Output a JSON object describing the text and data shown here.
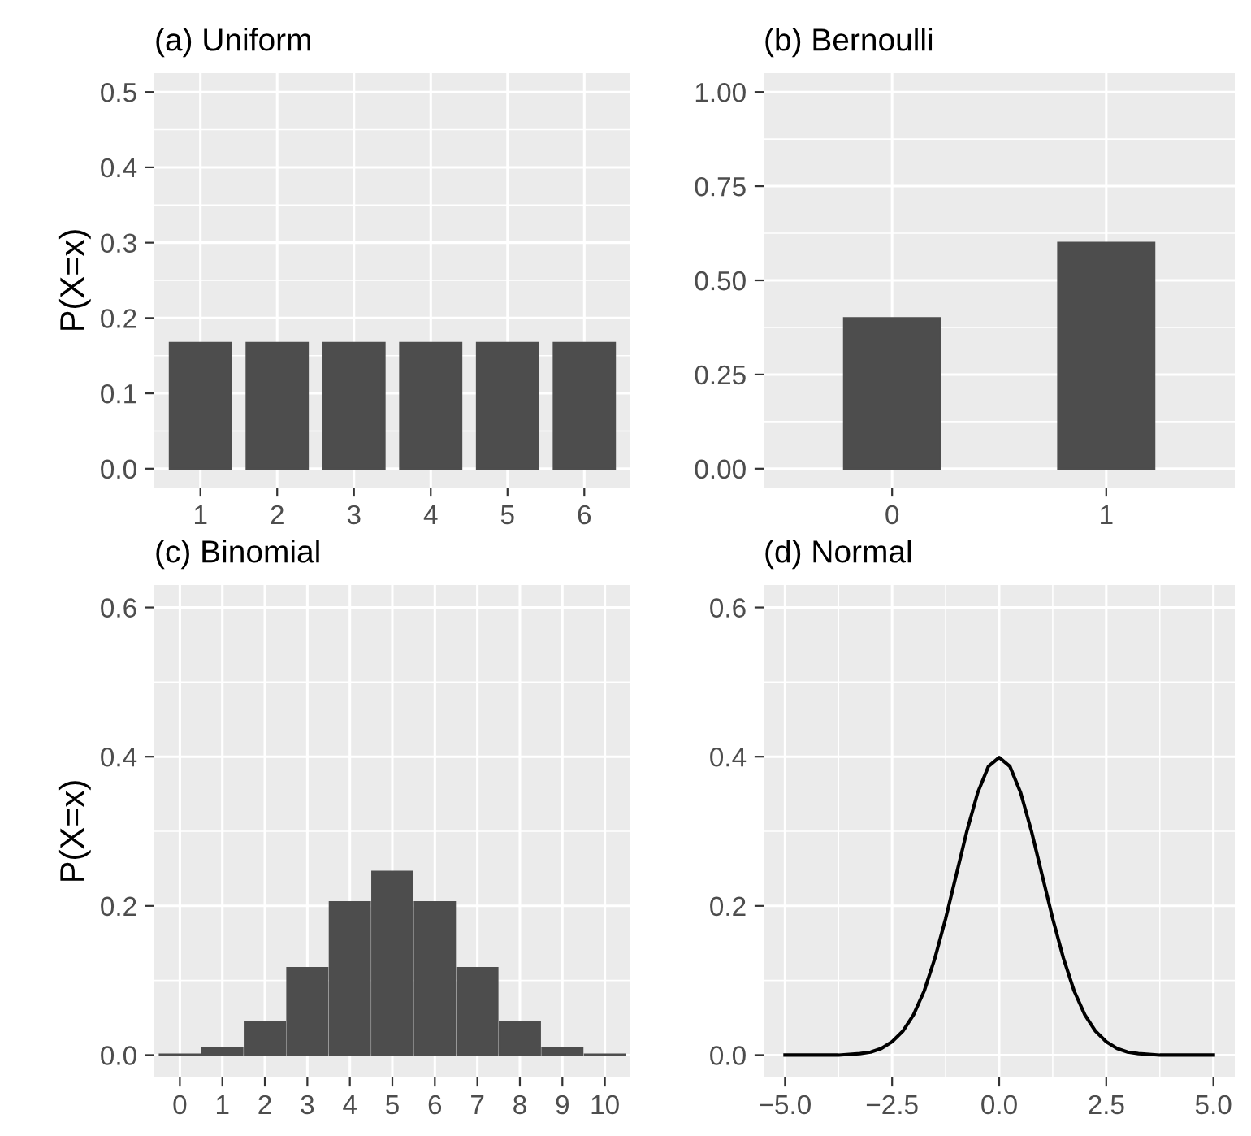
{
  "chart_data": [
    {
      "type": "bar",
      "title": "(a) Uniform",
      "ylabel": "P(X=x)",
      "categories": [
        "1",
        "2",
        "3",
        "4",
        "5",
        "6"
      ],
      "values": [
        0.167,
        0.167,
        0.167,
        0.167,
        0.167,
        0.167
      ],
      "color": "#4d4d4d",
      "ylim": [
        -0.025,
        0.525
      ],
      "yticks": [
        {
          "value": 0,
          "label": "0.0"
        },
        0.1,
        0.2,
        0.3,
        0.4,
        0.5
      ],
      "grid": true,
      "legend": false
    },
    {
      "type": "bar",
      "title": "(b) Bernoulli",
      "categories": [
        "0",
        "1"
      ],
      "values": [
        0.4,
        0.6
      ],
      "color": "#4d4d4d",
      "ylim": [
        -0.05,
        1.05
      ],
      "yticks": [
        {
          "value": 0,
          "label": "0.00"
        },
        0.25,
        {
          "value": 0.5,
          "label": "0.50"
        },
        0.75,
        {
          "value": 1,
          "label": "1.00"
        }
      ],
      "grid": true,
      "legend": false
    },
    {
      "type": "bar",
      "title": "(c) Binomial",
      "ylabel": "P(X=x)",
      "categories": [
        "0",
        "1",
        "2",
        "3",
        "4",
        "5",
        "6",
        "7",
        "8",
        "9",
        "10"
      ],
      "values": [
        0.001,
        0.01,
        0.044,
        0.117,
        0.205,
        0.246,
        0.205,
        0.117,
        0.044,
        0.01,
        0.001
      ],
      "color": "#4d4d4d",
      "ylim": [
        -0.03,
        0.63
      ],
      "yticks": [
        {
          "value": 0,
          "label": "0.0"
        },
        0.2,
        0.4,
        0.6
      ],
      "grid": true,
      "legend": false
    },
    {
      "type": "line",
      "title": "(d) Normal",
      "x": [
        -5,
        -4.75,
        -4.5,
        -4.25,
        -4,
        -3.75,
        -3.5,
        -3.25,
        -3,
        -2.75,
        -2.5,
        -2.25,
        -2,
        -1.75,
        -1.5,
        -1.25,
        -1,
        -0.75,
        -0.5,
        -0.25,
        0,
        0.25,
        0.5,
        0.75,
        1,
        1.25,
        1.5,
        1.75,
        2,
        2.25,
        2.5,
        2.75,
        3,
        3.25,
        3.5,
        3.75,
        4,
        4.25,
        4.5,
        4.75,
        5
      ],
      "values": [
        0,
        0,
        0,
        0,
        0,
        0,
        0.001,
        0.002,
        0.004,
        0.009,
        0.018,
        0.032,
        0.054,
        0.086,
        0.13,
        0.183,
        0.242,
        0.301,
        0.352,
        0.387,
        0.399,
        0.387,
        0.352,
        0.301,
        0.242,
        0.183,
        0.13,
        0.086,
        0.054,
        0.032,
        0.018,
        0.009,
        0.004,
        0.002,
        0.001,
        0,
        0,
        0,
        0,
        0,
        0
      ],
      "color": "#000000",
      "xlim": [
        -5.5,
        5.5
      ],
      "xticks": [
        {
          "value": -5,
          "label": "−5.0"
        },
        {
          "value": -2.5,
          "label": "−2.5"
        },
        {
          "value": 0,
          "label": "0.0"
        },
        2.5,
        {
          "value": 5,
          "label": "5.0"
        }
      ],
      "ylim": [
        -0.03,
        0.63
      ],
      "yticks": [
        {
          "value": 0,
          "label": "0.0"
        },
        0.2,
        0.4,
        0.6
      ],
      "grid": true,
      "legend": false,
      "marker": "none",
      "line_style": "solid"
    }
  ]
}
